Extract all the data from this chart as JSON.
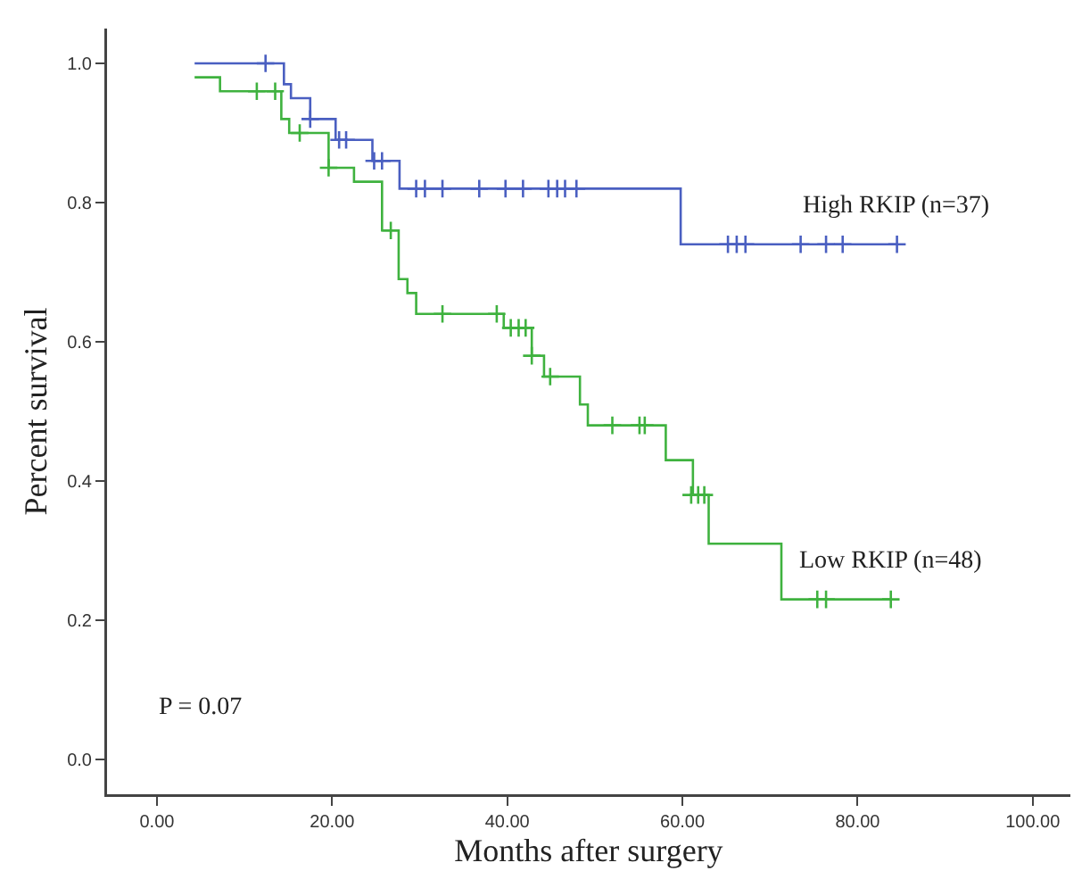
{
  "chart_data": {
    "type": "step",
    "xlabel": "Months after surgery",
    "ylabel": "Percent survival",
    "series": [
      {
        "name": "High RKIP (n=37)",
        "color": "#4a5fc1",
        "x": [
          4.3,
          14.5,
          15.3,
          17.5,
          20.4,
          24.6,
          27.7,
          59.8,
          84.5
        ],
        "values": [
          1.0,
          0.97,
          0.95,
          0.92,
          0.89,
          0.86,
          0.82,
          0.74,
          0.74
        ]
      },
      {
        "name": "Low RKIP (n=48)",
        "color": "#3fb23f",
        "x": [
          4.3,
          7.2,
          14.2,
          15.1,
          19.6,
          22.5,
          25.7,
          27.6,
          28.6,
          29.6,
          39.6,
          42.8,
          44.2,
          48.3,
          49.2,
          58.1,
          61.2,
          63.0,
          71.3,
          83.8
        ],
        "values": [
          0.98,
          0.96,
          0.92,
          0.9,
          0.85,
          0.83,
          0.76,
          0.69,
          0.67,
          0.64,
          0.62,
          0.58,
          0.55,
          0.51,
          0.48,
          0.43,
          0.38,
          0.31,
          0.23,
          0.23
        ]
      },
      {
        "type": "scatter",
        "marker": "cross",
        "color": "#4a5fc1",
        "x": [
          12.4,
          17.5,
          20.8,
          21.6,
          24.8,
          25.7,
          29.6,
          30.6,
          32.6,
          36.8,
          39.8,
          41.8,
          44.7,
          45.7,
          46.6,
          47.9,
          65.2,
          66.2,
          67.2,
          73.5,
          76.4,
          78.3,
          84.5
        ],
        "values": [
          1.0,
          0.92,
          0.89,
          0.89,
          0.86,
          0.86,
          0.82,
          0.82,
          0.82,
          0.82,
          0.82,
          0.82,
          0.82,
          0.82,
          0.82,
          0.82,
          0.74,
          0.74,
          0.74,
          0.74,
          0.74,
          0.74,
          0.74
        ]
      },
      {
        "type": "scatter",
        "marker": "cross",
        "color": "#3fb23f",
        "x": [
          11.4,
          13.5,
          16.3,
          19.6,
          26.7,
          32.6,
          38.8,
          40.4,
          41.3,
          42.1,
          42.8,
          44.9,
          52.0,
          55.1,
          55.7,
          61.0,
          61.8,
          62.5,
          75.4,
          76.4,
          83.8
        ],
        "values": [
          0.96,
          0.96,
          0.9,
          0.85,
          0.76,
          0.64,
          0.64,
          0.62,
          0.62,
          0.62,
          0.58,
          0.55,
          0.48,
          0.48,
          0.48,
          0.38,
          0.38,
          0.38,
          0.23,
          0.23,
          0.23
        ]
      }
    ],
    "annotations": [
      "P = 0.07"
    ],
    "xlim": [
      -5.7,
      104.3
    ],
    "xticks": [
      {
        "value": 0,
        "label": "0.00"
      },
      {
        "value": 20,
        "label": "20.00"
      },
      {
        "value": 40,
        "label": "40.00"
      },
      {
        "value": 60,
        "label": "60.00"
      },
      {
        "value": 80,
        "label": "80.00"
      },
      {
        "value": 100,
        "label": "100.00"
      }
    ],
    "ylim": [
      -0.05,
      1.05
    ],
    "yticks": [
      {
        "value": 0,
        "label": "0.0"
      },
      {
        "value": 0.2,
        "label": "0.2"
      },
      {
        "value": 0.4,
        "label": "0.4"
      },
      {
        "value": 0.6,
        "label": "0.6"
      },
      {
        "value": 0.8,
        "label": "0.8"
      },
      {
        "value": 1,
        "label": "1.0"
      }
    ],
    "grid": false,
    "legend": false
  }
}
